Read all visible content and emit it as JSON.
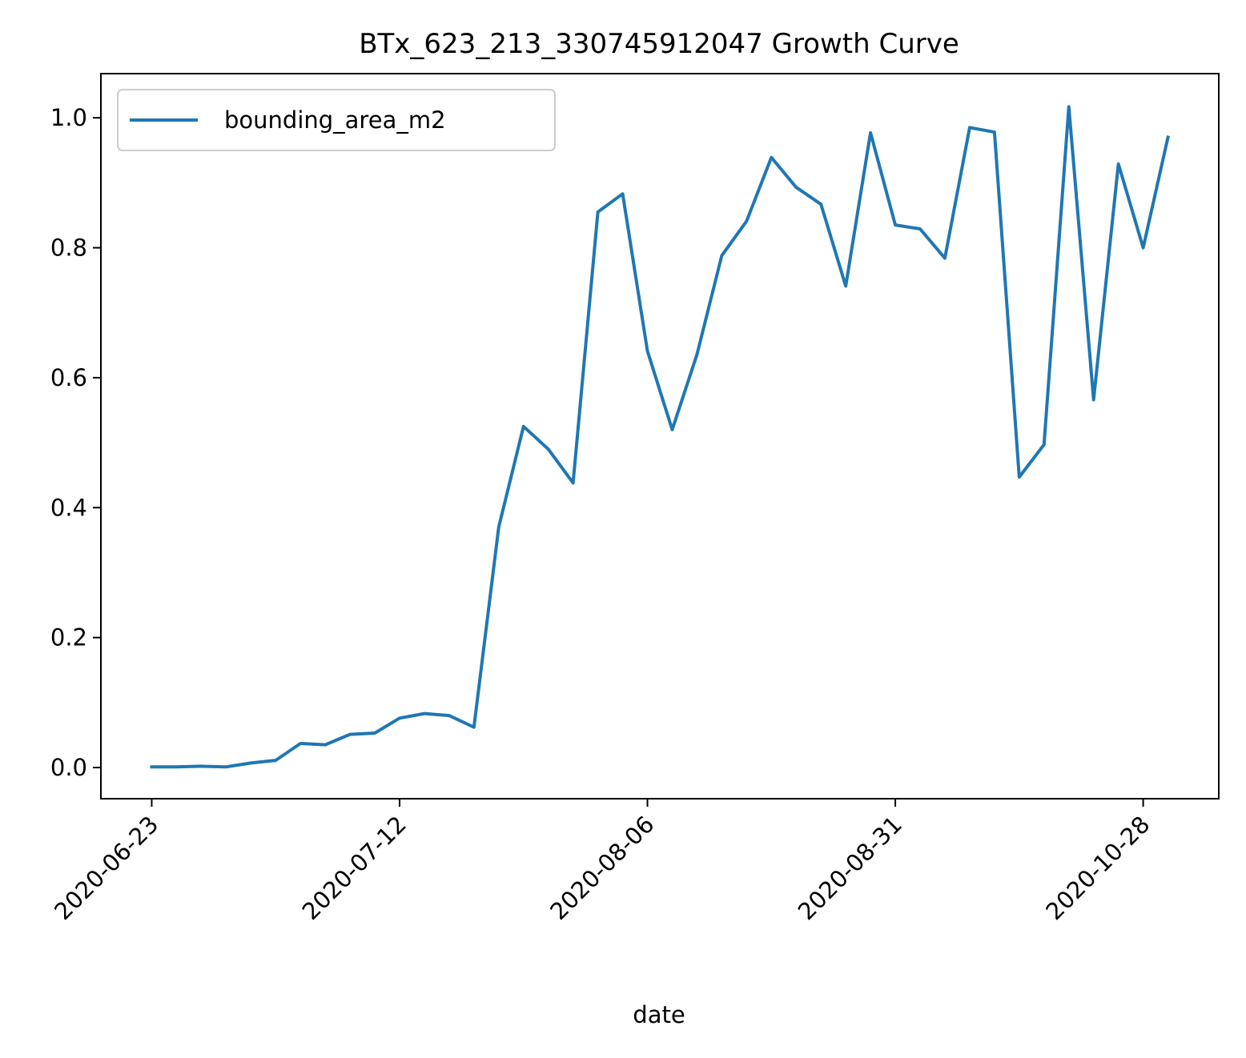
{
  "chart_data": {
    "type": "line",
    "title": "BTx_623_213_330745912047 Growth Curve",
    "xlabel": "date",
    "ylabel": "",
    "x_axis_kind": "categorical-dates",
    "x_tick_labels": [
      {
        "index": 0,
        "label": "2020-06-23"
      },
      {
        "index": 10,
        "label": "2020-07-12"
      },
      {
        "index": 20,
        "label": "2020-08-06"
      },
      {
        "index": 30,
        "label": "2020-08-31"
      },
      {
        "index": 40,
        "label": "2020-10-28"
      }
    ],
    "y_ticks": [
      {
        "value": 0.0,
        "label": "0.0"
      },
      {
        "value": 0.2,
        "label": "0.2"
      },
      {
        "value": 0.4,
        "label": "0.4"
      },
      {
        "value": 0.6,
        "label": "0.6"
      },
      {
        "value": 0.8,
        "label": "0.8"
      },
      {
        "value": 1.0,
        "label": "1.0"
      }
    ],
    "xlim": [
      -2.05,
      43.05
    ],
    "ylim": [
      -0.048,
      1.068
    ],
    "grid": false,
    "legend_position": "top-left",
    "series": [
      {
        "name": "bounding_area_m2",
        "color": "#1f77b4",
        "values": [
          0.001,
          0.001,
          0.002,
          0.001,
          0.007,
          0.011,
          0.037,
          0.035,
          0.051,
          0.053,
          0.076,
          0.083,
          0.08,
          0.062,
          0.37,
          0.525,
          0.49,
          0.438,
          0.855,
          0.883,
          0.641,
          0.52,
          0.636,
          0.788,
          0.841,
          0.939,
          0.893,
          0.867,
          0.741,
          0.977,
          0.835,
          0.829,
          0.784,
          0.985,
          0.978,
          0.447,
          0.497,
          1.017,
          0.566,
          0.929,
          0.8,
          0.97
        ]
      }
    ]
  }
}
